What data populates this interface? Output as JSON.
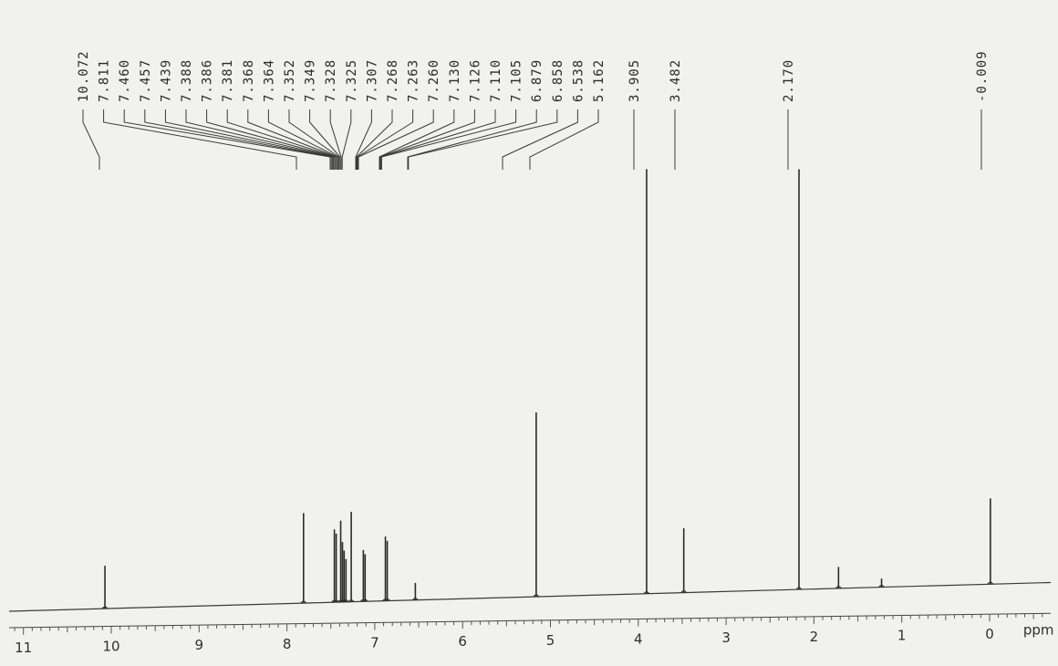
{
  "chart_data": {
    "type": "line",
    "title": "",
    "xlabel": "ppm",
    "ylabel": "",
    "xlim": [
      11,
      0
    ],
    "x_reversed": true,
    "grid": false,
    "x_ticks": [
      "11",
      "10",
      "9",
      "8",
      "7",
      "6",
      "5",
      "4",
      "3",
      "2",
      "1",
      "0"
    ],
    "peak_labels": [
      "10.072",
      "7.811",
      "7.460",
      "7.457",
      "7.439",
      "7.388",
      "7.386",
      "7.381",
      "7.368",
      "7.364",
      "7.352",
      "7.349",
      "7.328",
      "7.325",
      "7.307",
      "7.268",
      "7.263",
      "7.260",
      "7.130",
      "7.126",
      "7.110",
      "7.105",
      "6.879",
      "6.858",
      "6.538",
      "5.162",
      "3.905",
      "3.482",
      "2.170",
      "-0.009"
    ],
    "series": [
      {
        "peaks": [
          {
            "ppm": 10.072,
            "intensity": 0.1
          },
          {
            "ppm": 7.811,
            "intensity": 0.21
          },
          {
            "ppm": 7.46,
            "intensity": 0.17
          },
          {
            "ppm": 7.439,
            "intensity": 0.16
          },
          {
            "ppm": 7.388,
            "intensity": 0.19
          },
          {
            "ppm": 7.368,
            "intensity": 0.14
          },
          {
            "ppm": 7.349,
            "intensity": 0.12
          },
          {
            "ppm": 7.328,
            "intensity": 0.1
          },
          {
            "ppm": 7.268,
            "intensity": 0.21
          },
          {
            "ppm": 7.13,
            "intensity": 0.12
          },
          {
            "ppm": 7.11,
            "intensity": 0.11
          },
          {
            "ppm": 6.879,
            "intensity": 0.15
          },
          {
            "ppm": 6.858,
            "intensity": 0.14
          },
          {
            "ppm": 6.538,
            "intensity": 0.04
          },
          {
            "ppm": 5.162,
            "intensity": 0.43
          },
          {
            "ppm": 3.905,
            "intensity": 0.99
          },
          {
            "ppm": 3.482,
            "intensity": 0.15
          },
          {
            "ppm": 2.17,
            "intensity": 0.98
          },
          {
            "ppm": 1.72,
            "intensity": 0.05
          },
          {
            "ppm": 1.23,
            "intensity": 0.02
          },
          {
            "ppm": -0.009,
            "intensity": 0.2
          }
        ]
      }
    ]
  }
}
